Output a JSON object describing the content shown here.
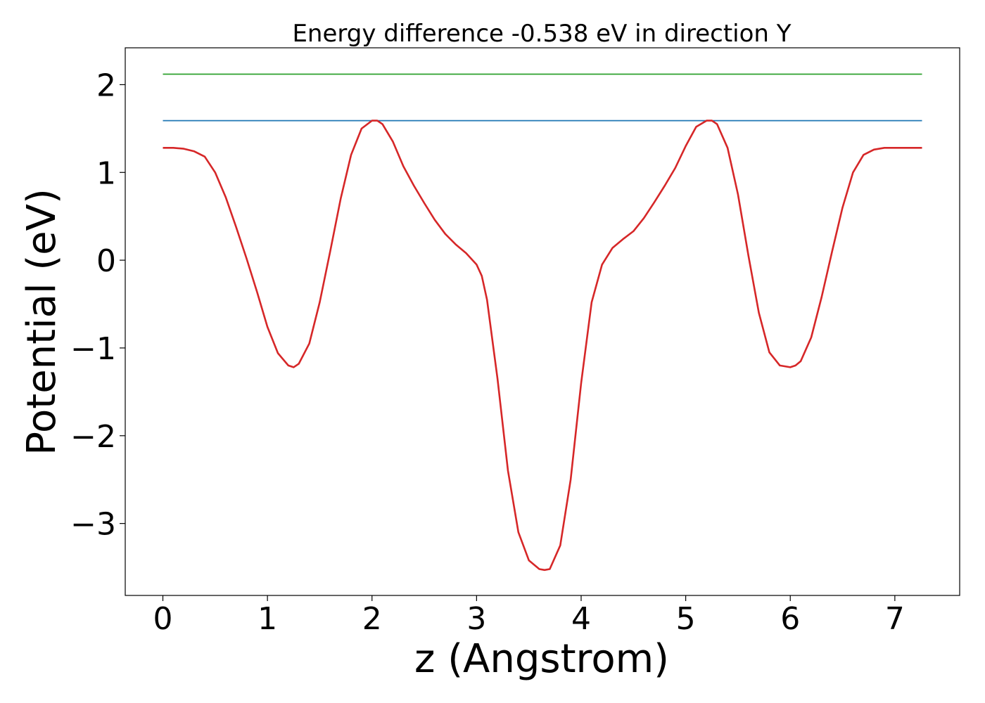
{
  "chart_data": {
    "type": "line",
    "title": "Energy difference -0.538 eV in direction Y",
    "xlabel": "z (Angstrom)",
    "ylabel": "Potential (eV)",
    "xlim": [
      -0.36,
      7.62
    ],
    "ylim": [
      -3.82,
      2.42
    ],
    "xticks": [
      0,
      1,
      2,
      3,
      4,
      5,
      6,
      7
    ],
    "yticks": [
      2,
      1,
      0,
      -1,
      -2,
      -3
    ],
    "ytick_labels": [
      "2",
      "1",
      "0",
      "−1",
      "−2",
      "−3"
    ],
    "grid": false,
    "series": [
      {
        "color": "#2ca02c",
        "x": [
          0,
          7.26
        ],
        "y": [
          2.12,
          2.12
        ]
      },
      {
        "color": "#1f77b4",
        "x": [
          0,
          7.26
        ],
        "y": [
          1.59,
          1.59
        ]
      },
      {
        "color": "#d62728",
        "x": [
          0,
          0.1,
          0.2,
          0.3,
          0.4,
          0.5,
          0.6,
          0.7,
          0.8,
          0.9,
          1.0,
          1.1,
          1.2,
          1.25,
          1.3,
          1.4,
          1.5,
          1.6,
          1.7,
          1.8,
          1.9,
          2.0,
          2.05,
          2.1,
          2.2,
          2.3,
          2.4,
          2.5,
          2.6,
          2.7,
          2.8,
          2.9,
          3.0,
          3.05,
          3.1,
          3.2,
          3.3,
          3.4,
          3.5,
          3.6,
          3.65,
          3.7,
          3.8,
          3.9,
          4.0,
          4.1,
          4.2,
          4.3,
          4.4,
          4.5,
          4.6,
          4.7,
          4.8,
          4.9,
          5.0,
          5.1,
          5.2,
          5.25,
          5.3,
          5.4,
          5.5,
          5.6,
          5.7,
          5.8,
          5.9,
          6.0,
          6.05,
          6.1,
          6.2,
          6.3,
          6.4,
          6.5,
          6.6,
          6.7,
          6.8,
          6.9,
          7.0,
          7.1,
          7.2,
          7.26
        ],
        "y": [
          1.28,
          1.28,
          1.27,
          1.24,
          1.18,
          1.0,
          0.72,
          0.38,
          0.02,
          -0.36,
          -0.76,
          -1.06,
          -1.2,
          -1.22,
          -1.18,
          -0.95,
          -0.48,
          0.1,
          0.7,
          1.2,
          1.5,
          1.59,
          1.59,
          1.55,
          1.35,
          1.07,
          0.85,
          0.65,
          0.46,
          0.3,
          0.18,
          0.08,
          -0.05,
          -0.18,
          -0.45,
          -1.35,
          -2.4,
          -3.1,
          -3.42,
          -3.52,
          -3.53,
          -3.52,
          -3.25,
          -2.5,
          -1.4,
          -0.48,
          -0.05,
          0.14,
          0.24,
          0.33,
          0.48,
          0.66,
          0.85,
          1.05,
          1.3,
          1.52,
          1.59,
          1.59,
          1.55,
          1.28,
          0.75,
          0.05,
          -0.6,
          -1.05,
          -1.2,
          -1.22,
          -1.2,
          -1.15,
          -0.88,
          -0.42,
          0.1,
          0.6,
          1.0,
          1.2,
          1.26,
          1.28,
          1.28,
          1.28,
          1.28,
          1.28
        ]
      }
    ]
  }
}
